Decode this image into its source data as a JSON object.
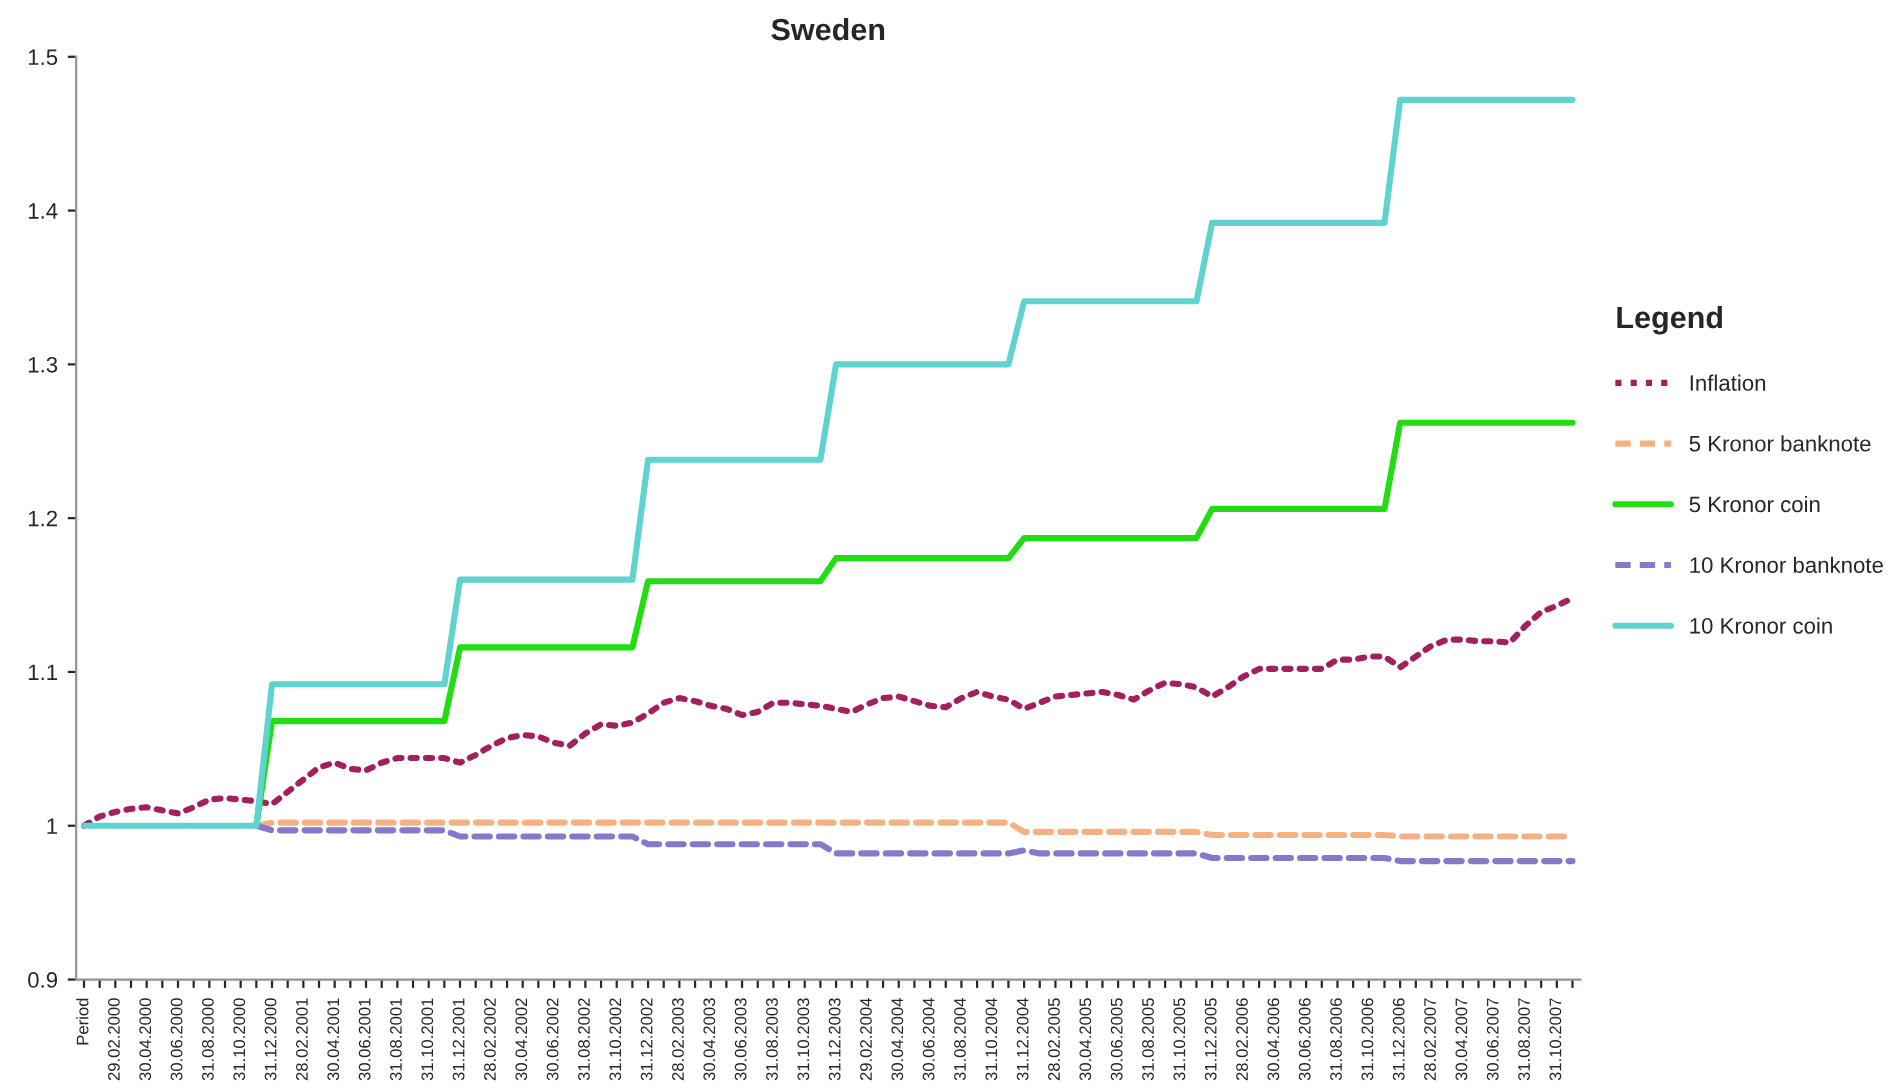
{
  "chart_data": {
    "type": "line",
    "title": "Sweden",
    "legend_title": "Legend",
    "legend": "right",
    "grid": false,
    "marker": "none",
    "categories": [
      "Period",
      null,
      "29.02.2000",
      null,
      "30.04.2000",
      null,
      "30.06.2000",
      null,
      "31.08.2000",
      null,
      "31.10.2000",
      null,
      "31.12.2000",
      null,
      "28.02.2001",
      null,
      "30.04.2001",
      null,
      "30.06.2001",
      null,
      "31.08.2001",
      null,
      "31.10.2001",
      null,
      "31.12.2001",
      null,
      "28.02.2002",
      null,
      "30.04.2002",
      null,
      "30.06.2002",
      null,
      "31.08.2002",
      null,
      "31.10.2002",
      null,
      "31.12.2002",
      null,
      "28.02.2003",
      null,
      "30.04.2003",
      null,
      "30.06.2003",
      null,
      "31.08.2003",
      null,
      "31.10.2003",
      null,
      "31.12.2003",
      null,
      "29.02.2004",
      null,
      "30.04.2004",
      null,
      "30.06.2004",
      null,
      "31.08.2004",
      null,
      "31.10.2004",
      null,
      "31.12.2004",
      null,
      "28.02.2005",
      null,
      "30.04.2005",
      null,
      "30.06.2005",
      null,
      "31.08.2005",
      null,
      "31.10.2005",
      null,
      "31.12.2005",
      null,
      "28.02.2006",
      null,
      "30.04.2006",
      null,
      "30.06.2006",
      null,
      "31.08.2006",
      null,
      "31.10.2006",
      null,
      "31.12.2006",
      null,
      "28.02.2007",
      null,
      "30.04.2007",
      null,
      "30.06.2007",
      null,
      "31.08.2007",
      null,
      "31.10.2007",
      null
    ],
    "ylim": [
      0.9,
      1.5
    ],
    "yticks": [
      0.9,
      1,
      1.1,
      1.2,
      1.3,
      1.4,
      1.5
    ],
    "series": [
      {
        "name": "Inflation",
        "color": "#a3205e",
        "line_style": "dotted",
        "values": [
          1.0,
          1.006,
          1.009,
          1.011,
          1.012,
          1.01,
          1.008,
          1.012,
          1.017,
          1.018,
          1.017,
          1.016,
          1.014,
          1.022,
          1.03,
          1.038,
          1.041,
          1.037,
          1.036,
          1.041,
          1.044,
          1.044,
          1.044,
          1.044,
          1.041,
          1.046,
          1.052,
          1.057,
          1.059,
          1.058,
          1.054,
          1.052,
          1.06,
          1.066,
          1.065,
          1.067,
          1.073,
          1.08,
          1.083,
          1.081,
          1.078,
          1.076,
          1.072,
          1.074,
          1.08,
          1.08,
          1.079,
          1.078,
          1.076,
          1.074,
          1.079,
          1.083,
          1.084,
          1.081,
          1.078,
          1.077,
          1.083,
          1.087,
          1.084,
          1.082,
          1.076,
          1.08,
          1.084,
          1.085,
          1.086,
          1.087,
          1.085,
          1.082,
          1.088,
          1.093,
          1.092,
          1.09,
          1.084,
          1.09,
          1.097,
          1.102,
          1.102,
          1.102,
          1.102,
          1.102,
          1.108,
          1.108,
          1.11,
          1.11,
          1.103,
          1.11,
          1.117,
          1.121,
          1.121,
          1.12,
          1.12,
          1.119,
          1.13,
          1.139,
          1.143,
          1.148
        ]
      },
      {
        "name": "5 Kronor banknote",
        "color": "#f4b183",
        "line_style": "dashed",
        "values": [
          null,
          null,
          null,
          null,
          null,
          null,
          null,
          null,
          null,
          null,
          null,
          1,
          1.002,
          1.002,
          1.002,
          1.002,
          1.002,
          1.002,
          1.002,
          1.002,
          1.002,
          1.002,
          1.002,
          1.002,
          1.002,
          1.002,
          1.002,
          1.002,
          1.002,
          1.002,
          1.002,
          1.002,
          1.002,
          1.002,
          1.002,
          1.002,
          1.002,
          1.002,
          1.002,
          1.002,
          1.002,
          1.002,
          1.002,
          1.002,
          1.002,
          1.002,
          1.002,
          1.002,
          1.002,
          1.002,
          1.002,
          1.002,
          1.002,
          1.002,
          1.002,
          1.002,
          1.002,
          1.002,
          1.002,
          1.002,
          0.996,
          0.996,
          0.996,
          0.996,
          0.996,
          0.996,
          0.996,
          0.996,
          0.996,
          0.996,
          0.996,
          0.996,
          0.994,
          0.994,
          0.994,
          0.994,
          0.994,
          0.994,
          0.994,
          0.994,
          0.994,
          0.994,
          0.994,
          0.994,
          0.993,
          0.993,
          0.993,
          0.993,
          0.993,
          0.993,
          0.993,
          0.993,
          0.993,
          0.993,
          0.993,
          0.993
        ]
      },
      {
        "name": "5 Kronor coin",
        "color": "#22dd11",
        "line_style": "solid",
        "values": [
          null,
          null,
          null,
          null,
          null,
          null,
          null,
          null,
          null,
          null,
          null,
          1,
          1.068,
          1.068,
          1.068,
          1.068,
          1.068,
          1.068,
          1.068,
          1.068,
          1.068,
          1.068,
          1.068,
          1.068,
          1.116,
          1.116,
          1.116,
          1.116,
          1.116,
          1.116,
          1.116,
          1.116,
          1.116,
          1.116,
          1.116,
          1.116,
          1.159,
          1.159,
          1.159,
          1.159,
          1.159,
          1.159,
          1.159,
          1.159,
          1.159,
          1.159,
          1.159,
          1.159,
          1.174,
          1.174,
          1.174,
          1.174,
          1.174,
          1.174,
          1.174,
          1.174,
          1.174,
          1.174,
          1.174,
          1.174,
          1.187,
          1.187,
          1.187,
          1.187,
          1.187,
          1.187,
          1.187,
          1.187,
          1.187,
          1.187,
          1.187,
          1.187,
          1.206,
          1.206,
          1.206,
          1.206,
          1.206,
          1.206,
          1.206,
          1.206,
          1.206,
          1.206,
          1.206,
          1.206,
          1.262,
          1.262,
          1.262,
          1.262,
          1.262,
          1.262,
          1.262,
          1.262,
          1.262,
          1.262,
          1.262,
          1.262
        ]
      },
      {
        "name": "10 Kronor banknote",
        "color": "#8878cc",
        "line_style": "dashed",
        "values": [
          null,
          null,
          null,
          null,
          null,
          null,
          null,
          null,
          null,
          null,
          null,
          1,
          0.997,
          0.997,
          0.997,
          0.997,
          0.997,
          0.997,
          0.997,
          0.997,
          0.997,
          0.997,
          0.997,
          0.997,
          0.993,
          0.993,
          0.993,
          0.993,
          0.993,
          0.993,
          0.993,
          0.993,
          0.993,
          0.993,
          0.993,
          0.993,
          0.988,
          0.988,
          0.988,
          0.988,
          0.988,
          0.988,
          0.988,
          0.988,
          0.988,
          0.988,
          0.988,
          0.988,
          0.982,
          0.982,
          0.982,
          0.982,
          0.982,
          0.982,
          0.982,
          0.982,
          0.982,
          0.982,
          0.982,
          0.982,
          0.984,
          0.982,
          0.982,
          0.982,
          0.982,
          0.982,
          0.982,
          0.982,
          0.982,
          0.982,
          0.982,
          0.982,
          0.979,
          0.979,
          0.979,
          0.979,
          0.979,
          0.979,
          0.979,
          0.979,
          0.979,
          0.979,
          0.979,
          0.979,
          0.977,
          0.977,
          0.977,
          0.977,
          0.977,
          0.977,
          0.977,
          0.977,
          0.977,
          0.977,
          0.977,
          0.977
        ]
      },
      {
        "name": "10 Kronor coin",
        "color": "#5fd3d0",
        "line_style": "solid",
        "values": [
          1,
          1,
          1,
          1,
          1,
          1,
          1,
          1,
          1,
          1,
          1,
          1,
          1.092,
          1.092,
          1.092,
          1.092,
          1.092,
          1.092,
          1.092,
          1.092,
          1.092,
          1.092,
          1.092,
          1.092,
          1.16,
          1.16,
          1.16,
          1.16,
          1.16,
          1.16,
          1.16,
          1.16,
          1.16,
          1.16,
          1.16,
          1.16,
          1.238,
          1.238,
          1.238,
          1.238,
          1.238,
          1.238,
          1.238,
          1.238,
          1.238,
          1.238,
          1.238,
          1.238,
          1.3,
          1.3,
          1.3,
          1.3,
          1.3,
          1.3,
          1.3,
          1.3,
          1.3,
          1.3,
          1.3,
          1.3,
          1.341,
          1.341,
          1.341,
          1.341,
          1.341,
          1.341,
          1.341,
          1.341,
          1.341,
          1.341,
          1.341,
          1.341,
          1.392,
          1.392,
          1.392,
          1.392,
          1.392,
          1.392,
          1.392,
          1.392,
          1.392,
          1.392,
          1.392,
          1.392,
          1.472,
          1.472,
          1.472,
          1.472,
          1.472,
          1.472,
          1.472,
          1.472,
          1.472,
          1.472,
          1.472,
          1.472
        ]
      }
    ]
  }
}
